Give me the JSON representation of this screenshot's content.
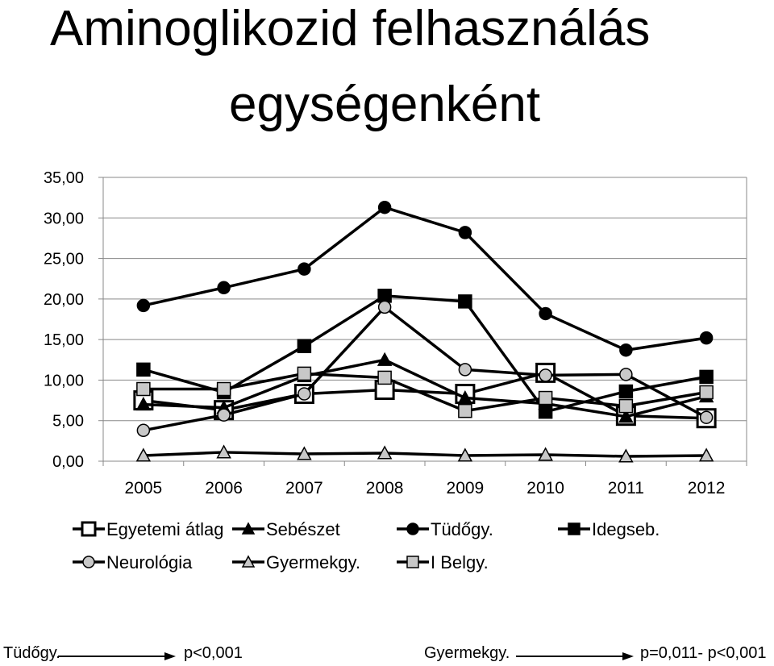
{
  "chart_data": {
    "type": "line",
    "title": [
      "Aminoglikozid felhasználás",
      "egységenként"
    ],
    "categories": [
      "2005",
      "2006",
      "2007",
      "2008",
      "2009",
      "2010",
      "2011",
      "2012"
    ],
    "y_ticks": [
      "0,00",
      "5,00",
      "10,00",
      "15,00",
      "20,00",
      "25,00",
      "30,00",
      "35,00"
    ],
    "ylim": [
      0,
      35
    ],
    "grid": true,
    "legend_position": "bottom",
    "series": [
      {
        "name": "Egyetemi átlag",
        "marker": "open-square",
        "marker_fill": "#ffffff",
        "values": [
          7.5,
          6.3,
          8.3,
          8.8,
          8.3,
          10.9,
          5.6,
          5.3
        ]
      },
      {
        "name": "Sebészet",
        "marker": "triangle",
        "marker_fill": "#000000",
        "values": [
          7.0,
          6.6,
          10.5,
          12.5,
          7.8,
          7.1,
          5.5,
          8.0
        ]
      },
      {
        "name": "Tüdőgy.",
        "marker": "circle",
        "marker_fill": "#000000",
        "values": [
          19.2,
          21.4,
          23.7,
          31.3,
          28.2,
          18.2,
          13.7,
          15.2
        ]
      },
      {
        "name": "Idegseb.",
        "marker": "square",
        "marker_fill": "#000000",
        "values": [
          11.3,
          8.5,
          14.2,
          20.4,
          19.7,
          6.1,
          8.6,
          10.4
        ]
      },
      {
        "name": "Neurológia",
        "marker": "circle",
        "marker_fill": "#c8c8c8",
        "values": [
          3.8,
          5.7,
          8.3,
          19.0,
          11.3,
          10.6,
          10.7,
          5.4
        ]
      },
      {
        "name": "Gyermekgy.",
        "marker": "triangle",
        "marker_fill": "#c8c8c8",
        "values": [
          0.7,
          1.1,
          0.9,
          1.0,
          0.7,
          0.8,
          0.6,
          0.7
        ]
      },
      {
        "name": "I Belgy.",
        "marker": "square",
        "marker_fill": "#c8c8c8",
        "values": [
          8.9,
          8.9,
          10.8,
          10.3,
          6.2,
          7.8,
          6.8,
          8.5
        ]
      }
    ]
  },
  "footer": {
    "left_label": "Tüdőgy.",
    "left_value": "p<0,001",
    "right_label": "Gyermekgy.",
    "right_value": "p=0,011- p<0,001"
  }
}
